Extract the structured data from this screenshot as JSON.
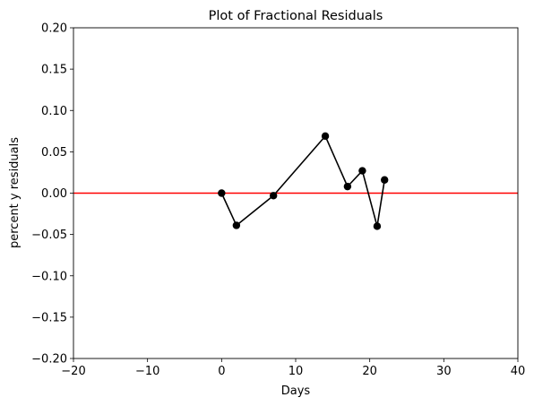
{
  "chart_data": {
    "type": "line",
    "title": "Plot of Fractional Residuals",
    "xlabel": "Days",
    "ylabel": "percent y residuals",
    "xlim": [
      -20,
      40
    ],
    "ylim": [
      -0.2,
      0.2
    ],
    "xticks": [
      -20,
      -10,
      0,
      10,
      20,
      30,
      40
    ],
    "xtick_labels": [
      "−20",
      "−10",
      "0",
      "10",
      "20",
      "30",
      "40"
    ],
    "yticks": [
      -0.2,
      -0.15,
      -0.1,
      -0.05,
      0.0,
      0.05,
      0.1,
      0.15,
      0.2
    ],
    "ytick_labels": [
      "−0.20",
      "−0.15",
      "−0.10",
      "−0.05",
      "0.00",
      "0.05",
      "0.10",
      "0.15",
      "0.20"
    ],
    "grid": false,
    "series": [
      {
        "x": [
          0,
          2,
          7,
          14,
          17,
          19,
          21,
          22
        ],
        "y": [
          0.0,
          -0.039,
          -0.003,
          0.069,
          0.008,
          0.027,
          -0.04,
          0.016
        ],
        "color": "#000000",
        "marker": "circle"
      }
    ],
    "reference_line": {
      "y": 0.0,
      "color": "#ff0000"
    }
  }
}
